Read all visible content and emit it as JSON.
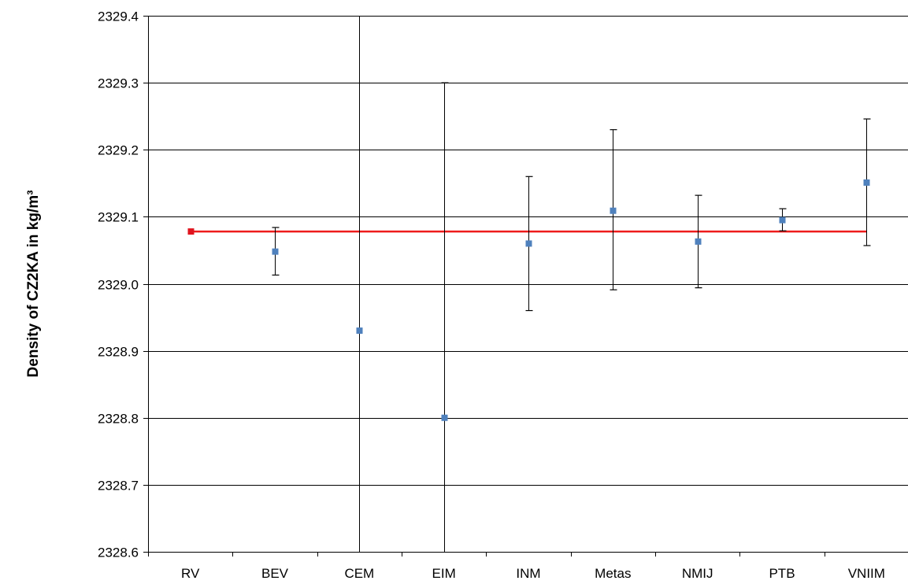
{
  "chart_data": {
    "type": "scatter",
    "title": "",
    "xlabel": "",
    "ylabel": "Density of CZ2KA in kg/m³",
    "categories": [
      "RV",
      "BEV",
      "CEM",
      "EIM",
      "INM",
      "Metas",
      "NMIJ",
      "PTB",
      "VNIIM"
    ],
    "ylim": [
      2328.6,
      2329.4
    ],
    "yticks": [
      "2328.6",
      "2328.7",
      "2328.8",
      "2328.9",
      "2329.0",
      "2329.1",
      "2329.2",
      "2329.3",
      "2329.4"
    ],
    "grid": "horizontal",
    "series": [
      {
        "color": "#4f81bd",
        "marker": "square",
        "points": [
          {
            "category": "RV",
            "value": 2329.078,
            "err_low": null,
            "err_high": null
          },
          {
            "category": "BEV",
            "value": 2329.048,
            "err_low": 2329.013,
            "err_high": 2329.084
          },
          {
            "category": "CEM",
            "value": 2328.93,
            "err_low": 2328.6,
            "err_high": 2329.4
          },
          {
            "category": "EIM",
            "value": 2328.8,
            "err_low": 2328.6,
            "err_high": 2329.3
          },
          {
            "category": "INM",
            "value": 2329.06,
            "err_low": 2328.96,
            "err_high": 2329.16
          },
          {
            "category": "Metas",
            "value": 2329.109,
            "err_low": 2328.991,
            "err_high": 2329.23
          },
          {
            "category": "NMIJ",
            "value": 2329.063,
            "err_low": 2328.994,
            "err_high": 2329.132
          },
          {
            "category": "PTB",
            "value": 2329.095,
            "err_low": 2329.079,
            "err_high": 2329.112
          },
          {
            "category": "VNIIM",
            "value": 2329.151,
            "err_low": 2329.057,
            "err_high": 2329.246
          }
        ]
      }
    ],
    "reference_line": {
      "value": 2329.078,
      "color": "#ee1c1c"
    },
    "rv_marker_color": "#e0141e"
  }
}
